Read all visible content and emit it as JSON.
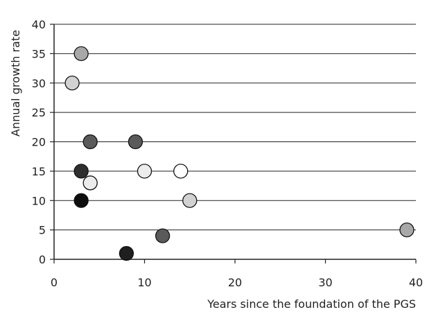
{
  "chart_data": {
    "type": "scatter",
    "title": "",
    "xlabel": "Years since the foundation of the PGS",
    "ylabel": "Annual growth rate",
    "xlim": [
      0,
      40
    ],
    "ylim": [
      0,
      40
    ],
    "x_ticks": [
      0,
      10,
      20,
      30,
      40
    ],
    "y_ticks": [
      0,
      5,
      10,
      15,
      20,
      25,
      30,
      35,
      40
    ],
    "grid": "horizontal",
    "legend": "none",
    "points": [
      {
        "x": 3,
        "y": 35,
        "color": "#a8a8a8"
      },
      {
        "x": 2,
        "y": 30,
        "color": "#d2d2d2"
      },
      {
        "x": 4,
        "y": 20,
        "color": "#5a5a5a"
      },
      {
        "x": 9,
        "y": 20,
        "color": "#5a5a5a"
      },
      {
        "x": 3,
        "y": 15,
        "color": "#2f2f2f"
      },
      {
        "x": 10,
        "y": 15,
        "color": "#ececec"
      },
      {
        "x": 14,
        "y": 15,
        "color": "#ffffff"
      },
      {
        "x": 4,
        "y": 13,
        "color": "#ececec"
      },
      {
        "x": 3,
        "y": 10,
        "color": "#0d0d0d"
      },
      {
        "x": 15,
        "y": 10,
        "color": "#d2d2d2"
      },
      {
        "x": 39,
        "y": 5,
        "color": "#a8a8a8"
      },
      {
        "x": 12,
        "y": 4,
        "color": "#5a5a5a"
      },
      {
        "x": 8,
        "y": 1,
        "color": "#1f1f1f"
      }
    ]
  }
}
